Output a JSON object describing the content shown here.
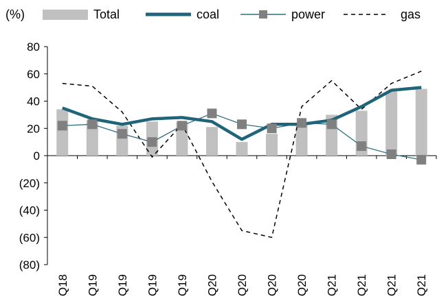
{
  "chart_data": {
    "type": "bar",
    "unit_label": "(%)",
    "categories": [
      "Q18",
      "Q19",
      "Q19",
      "Q19",
      "Q19",
      "Q20",
      "Q20",
      "Q20",
      "Q20",
      "Q21",
      "Q21",
      "Q21",
      "Q21"
    ],
    "y_ticks": [
      "80",
      "60",
      "40",
      "20",
      "0",
      "(20)",
      "(40)",
      "(60)",
      "(80)"
    ],
    "ylim": [
      -80,
      80
    ],
    "grid": false,
    "legend_position": "top",
    "series": [
      {
        "name": "Total",
        "kind": "bar",
        "color": "#c0c0c0",
        "values": [
          34,
          26,
          22,
          25,
          25,
          21,
          10,
          16,
          23,
          30,
          33,
          47,
          49
        ]
      },
      {
        "name": "coal",
        "kind": "line",
        "color": "#1f6478",
        "values": [
          35,
          27,
          23,
          27,
          28,
          25,
          12,
          23,
          23,
          26,
          36,
          48,
          50
        ]
      },
      {
        "name": "power",
        "kind": "line-marker",
        "color": "#2e6e80",
        "marker_color": "#808080",
        "values": [
          22,
          23,
          16,
          10,
          22,
          31,
          23,
          20,
          24,
          23,
          7,
          1,
          -3
        ]
      },
      {
        "name": "gas",
        "kind": "dashed-line",
        "color": "#000000",
        "values": [
          53,
          51,
          32,
          -1,
          23,
          -19,
          -55,
          -60,
          36,
          55,
          34,
          53,
          62
        ]
      }
    ]
  }
}
